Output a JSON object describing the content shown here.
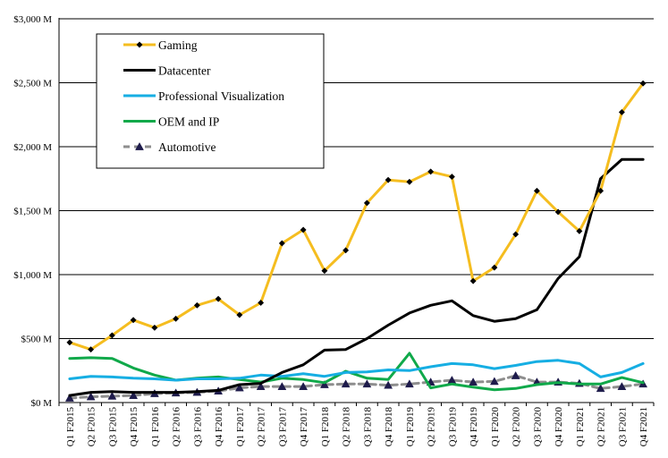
{
  "chart_data": {
    "type": "line",
    "title": "",
    "xlabel": "",
    "ylabel": "",
    "ylim": [
      0,
      3000
    ],
    "y_ticks": [
      {
        "value": 0,
        "label": "$0 M"
      },
      {
        "value": 500,
        "label": "$500 M"
      },
      {
        "value": 1000,
        "label": "$1,000 M"
      },
      {
        "value": 1500,
        "label": "$1,500 M"
      },
      {
        "value": 2000,
        "label": "$2,000 M"
      },
      {
        "value": 2500,
        "label": "$2,500 M"
      },
      {
        "value": 3000,
        "label": "$3,000 M"
      }
    ],
    "grid": "horizontal",
    "legend_position": "top-left",
    "categories": [
      "Q1 F2015",
      "Q2 F2015",
      "Q3 F2015",
      "Q4 F2015",
      "Q1 F2016",
      "Q2 F2016",
      "Q3 F2016",
      "Q4 F2016",
      "Q1 F2017",
      "Q2 F2017",
      "Q3 F2017",
      "Q4 F2017",
      "Q1 F2018",
      "Q2 F2018",
      "Q3 F2018",
      "Q4 F2018",
      "Q1 F2019",
      "Q2 F2019",
      "Q3 F2019",
      "Q4 F2019",
      "Q1 F2020",
      "Q2 F2020",
      "Q3 F2020",
      "Q4 F2020",
      "Q1 F2021",
      "Q2 F2021",
      "Q3 F2021",
      "Q4 F2021"
    ],
    "series": [
      {
        "name": "Gaming",
        "color": "#F5BD1F",
        "marker": "diamond",
        "dash": "solid",
        "values": [
          470,
          415,
          525,
          645,
          585,
          655,
          760,
          810,
          685,
          780,
          1245,
          1350,
          1030,
          1190,
          1560,
          1740,
          1725,
          1805,
          1765,
          950,
          1055,
          1315,
          1655,
          1490,
          1340,
          1655,
          2270,
          2495
        ]
      },
      {
        "name": "Datacenter",
        "color": "#000000",
        "marker": "none",
        "dash": "solid",
        "values": [
          55,
          80,
          85,
          80,
          80,
          80,
          85,
          95,
          140,
          150,
          235,
          295,
          410,
          415,
          500,
          605,
          700,
          760,
          795,
          680,
          635,
          655,
          725,
          970,
          1140,
          1750,
          1900,
          1900
        ]
      },
      {
        "name": "Professional Visualization",
        "color": "#16AEE3",
        "marker": "none",
        "dash": "solid",
        "values": [
          185,
          205,
          200,
          190,
          185,
          175,
          185,
          185,
          190,
          215,
          205,
          225,
          205,
          235,
          240,
          255,
          250,
          280,
          305,
          295,
          265,
          290,
          320,
          330,
          305,
          200,
          235,
          305
        ]
      },
      {
        "name": "OEM and IP",
        "color": "#10A94A",
        "marker": "none",
        "dash": "solid",
        "values": [
          345,
          350,
          345,
          270,
          215,
          175,
          190,
          200,
          180,
          160,
          190,
          180,
          155,
          245,
          190,
          180,
          385,
          115,
          145,
          120,
          100,
          110,
          140,
          155,
          145,
          145,
          195,
          155
        ]
      },
      {
        "name": "Automotive",
        "color": "#8E8E8E",
        "marker": "triangle",
        "dash": "dashed",
        "values": [
          35,
          45,
          50,
          55,
          70,
          75,
          80,
          90,
          115,
          125,
          125,
          125,
          140,
          145,
          145,
          135,
          145,
          160,
          175,
          160,
          165,
          210,
          160,
          160,
          150,
          110,
          125,
          145
        ]
      }
    ]
  }
}
